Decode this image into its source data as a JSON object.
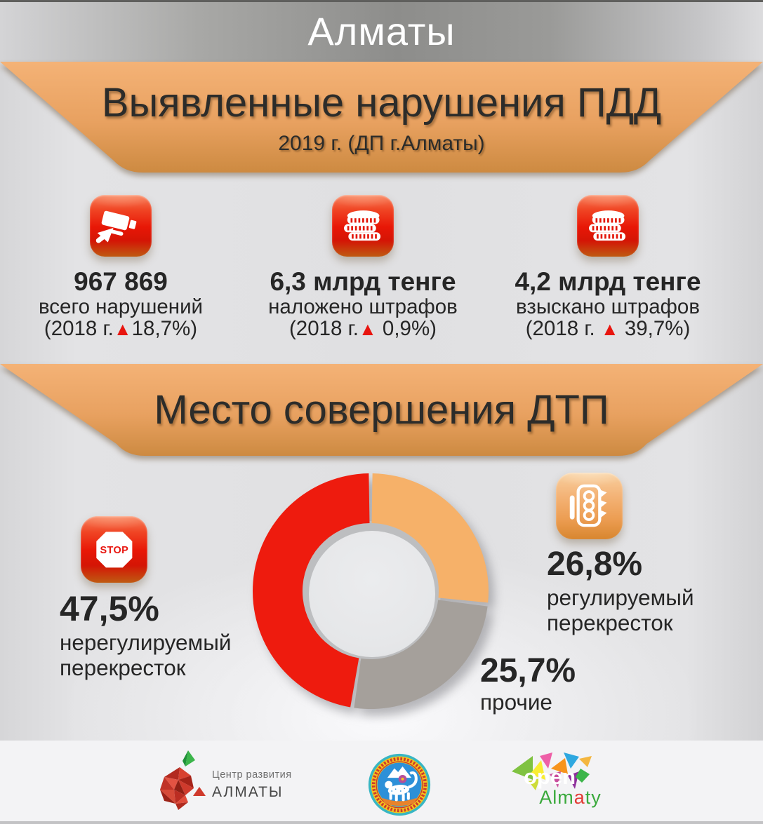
{
  "header": {
    "title": "Алматы"
  },
  "section_violations": {
    "title": "Выявленные нарушения ПДД",
    "subtitle": "2019 г. (ДП г.Алматы)"
  },
  "stats": [
    {
      "icon": "cctv-camera-icon",
      "value": "967 869",
      "label": "всего нарушений",
      "change_prefix": "(2018 г.",
      "triangle": "▲",
      "change_suffix": "18,7%)"
    },
    {
      "icon": "coins-stack-icon",
      "value": "6,3 млрд тенге",
      "label": "наложено штрафов",
      "change_prefix": "(2018 г.",
      "triangle": "▲",
      "change_suffix": " 0,9%)"
    },
    {
      "icon": "coins-stack-icon",
      "value": "4,2 млрд тенге",
      "label": "взыскано штрафов",
      "change_prefix": "(2018 г. ",
      "triangle": "▲",
      "change_suffix": " 39,7%)"
    }
  ],
  "section_accidents": {
    "title": "Место совершения ДТП"
  },
  "chart_data": {
    "type": "pie",
    "donut": true,
    "title": "Место совершения ДТП",
    "start": "12 o'clock, clockwise",
    "gap_deg": 1.8,
    "outer_radius": 168,
    "inner_radius": 97,
    "slices": [
      {
        "label": "регулируемый перекресток",
        "value": 26.8,
        "display": "26,8%",
        "color": "#f6b169"
      },
      {
        "label": "прочие",
        "value": 25.7,
        "display": "25,7%",
        "color": "#a5a09b"
      },
      {
        "label": "нерегулируемый перекресток",
        "value": 47.5,
        "display": "47,5%",
        "color": "#ee1b0e"
      }
    ]
  },
  "callouts": {
    "unregulated": {
      "icon": "stop-sign-icon",
      "percent": "47,5%",
      "line1": "нерегулируемый",
      "line2": "перекресток"
    },
    "regulated": {
      "icon": "traffic-light-icon",
      "percent": "26,8%",
      "line1": "регулируемый",
      "line2": "перекресток"
    },
    "other": {
      "percent": "25,7%",
      "line1": "прочие"
    }
  },
  "icons": {
    "stop_text": "STOP"
  },
  "footer": {
    "dev_center_logo": {
      "icon": "faceted-apple-icon",
      "line1": "Центр развития",
      "line2": "АЛМАТЫ"
    },
    "city_seal": {
      "icon": "almaty-seal-icon"
    },
    "open_logo": {
      "icon": "color-mosaic-icon",
      "word": "open",
      "almaty_parts": [
        "Alm",
        "a",
        "ty"
      ]
    }
  },
  "colors": {
    "banner_orange_top": "#f4b174",
    "banner_orange_bottom": "#cf8a3f",
    "tile_red": "#e81706",
    "tile_orange": "#ec9d52",
    "slice_red": "#ee1b0e",
    "slice_orange": "#f6b169",
    "slice_gray": "#a5a09b",
    "triangle_red": "#e8150f",
    "text_dark": "#262626",
    "footer_bg": "#f3f3f5"
  }
}
